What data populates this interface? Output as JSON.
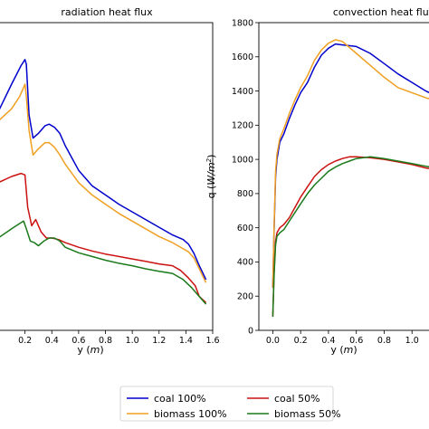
{
  "chart_data": [
    {
      "type": "line",
      "title": "radiation heat flux",
      "xlabel": "y",
      "xlabel_unit": "m",
      "ylabel": "",
      "xlim": [
        0.0,
        1.6
      ],
      "ylim": [
        0,
        1000
      ],
      "xticks": [
        "0.2",
        "0.4",
        "0.6",
        "0.8",
        "1.0",
        "1.2",
        "1.4",
        "1.6"
      ],
      "series": [
        {
          "name": "coal 100%",
          "color": "#0000cc",
          "x": [
            0.0,
            0.1,
            0.17,
            0.2,
            0.21,
            0.23,
            0.26,
            0.3,
            0.35,
            0.38,
            0.42,
            0.46,
            0.5,
            0.55,
            0.6,
            0.65,
            0.7,
            0.8,
            0.9,
            1.0,
            1.1,
            1.2,
            1.3,
            1.38,
            1.42,
            1.46,
            1.5,
            1.55
          ],
          "y": [
            710,
            800,
            860,
            880,
            865,
            700,
            625,
            640,
            665,
            670,
            660,
            640,
            600,
            560,
            520,
            495,
            470,
            440,
            410,
            385,
            360,
            335,
            310,
            295,
            280,
            250,
            210,
            165
          ]
        },
        {
          "name": "biomass 100%",
          "color": "#f0a020",
          "x": [
            0.0,
            0.1,
            0.16,
            0.18,
            0.2,
            0.21,
            0.23,
            0.26,
            0.3,
            0.35,
            0.38,
            0.42,
            0.46,
            0.5,
            0.55,
            0.6,
            0.65,
            0.7,
            0.8,
            0.9,
            1.0,
            1.1,
            1.2,
            1.3,
            1.38,
            1.42,
            1.46,
            1.5,
            1.55
          ],
          "y": [
            680,
            720,
            760,
            780,
            800,
            760,
            650,
            570,
            590,
            610,
            610,
            595,
            570,
            540,
            510,
            480,
            460,
            440,
            410,
            380,
            355,
            330,
            305,
            285,
            265,
            255,
            235,
            200,
            155
          ]
        },
        {
          "name": "coal 50%",
          "color": "#cc1111",
          "x": [
            0.0,
            0.1,
            0.17,
            0.2,
            0.22,
            0.25,
            0.28,
            0.32,
            0.36,
            0.4,
            0.45,
            0.5,
            0.6,
            0.7,
            0.8,
            0.9,
            1.0,
            1.1,
            1.2,
            1.3,
            1.36,
            1.42,
            1.47,
            1.5,
            1.55
          ],
          "y": [
            480,
            500,
            510,
            505,
            400,
            340,
            360,
            320,
            300,
            300,
            295,
            285,
            270,
            258,
            248,
            240,
            232,
            224,
            216,
            210,
            195,
            170,
            145,
            110,
            90
          ]
        },
        {
          "name": "biomass 50%",
          "color": "#1a7a1a",
          "x": [
            0.0,
            0.1,
            0.17,
            0.19,
            0.21,
            0.24,
            0.27,
            0.3,
            0.34,
            0.38,
            0.42,
            0.46,
            0.5,
            0.6,
            0.7,
            0.8,
            0.9,
            1.0,
            1.1,
            1.2,
            1.3,
            1.38,
            1.44,
            1.5,
            1.55
          ],
          "y": [
            300,
            330,
            350,
            355,
            330,
            290,
            285,
            275,
            290,
            300,
            300,
            290,
            270,
            252,
            240,
            228,
            218,
            210,
            200,
            192,
            185,
            165,
            140,
            110,
            85
          ]
        }
      ]
    },
    {
      "type": "line",
      "title": "convection heat flux",
      "xlabel": "y",
      "xlabel_unit": "m",
      "ylabel": "q",
      "ylabel_unit": "W/m",
      "ylabel_exp": "2",
      "xlim": [
        -0.1,
        1.2
      ],
      "ylim": [
        0,
        1800
      ],
      "xticks": [
        "0.0",
        "0.2",
        "0.4",
        "0.6",
        "0.8",
        "1.0"
      ],
      "yticks": [
        "0",
        "200",
        "400",
        "600",
        "800",
        "1000",
        "1200",
        "1400",
        "1600",
        "1800"
      ],
      "series": [
        {
          "name": "coal 100%",
          "color": "#0000cc",
          "x": [
            0.0,
            0.01,
            0.02,
            0.03,
            0.05,
            0.08,
            0.12,
            0.16,
            0.2,
            0.25,
            0.3,
            0.35,
            0.4,
            0.45,
            0.5,
            0.6,
            0.7,
            0.8,
            0.9,
            1.0,
            1.1,
            1.2
          ],
          "y": [
            250,
            600,
            900,
            1000,
            1100,
            1150,
            1240,
            1320,
            1390,
            1450,
            1540,
            1610,
            1650,
            1675,
            1670,
            1660,
            1620,
            1560,
            1500,
            1450,
            1400,
            1360
          ]
        },
        {
          "name": "biomass 100%",
          "color": "#f0a020",
          "x": [
            0.0,
            0.01,
            0.02,
            0.03,
            0.05,
            0.08,
            0.12,
            0.16,
            0.2,
            0.25,
            0.3,
            0.35,
            0.4,
            0.45,
            0.5,
            0.6,
            0.7,
            0.8,
            0.9,
            1.0,
            1.1,
            1.2
          ],
          "y": [
            250,
            620,
            930,
            1030,
            1120,
            1180,
            1270,
            1350,
            1420,
            1490,
            1580,
            1640,
            1680,
            1700,
            1690,
            1620,
            1550,
            1480,
            1420,
            1390,
            1360,
            1340
          ]
        },
        {
          "name": "coal 50%",
          "color": "#cc1111",
          "x": [
            0.0,
            0.01,
            0.02,
            0.03,
            0.05,
            0.08,
            0.12,
            0.16,
            0.2,
            0.25,
            0.3,
            0.35,
            0.4,
            0.45,
            0.5,
            0.55,
            0.6,
            0.7,
            0.8,
            0.9,
            1.0,
            1.1,
            1.2
          ],
          "y": [
            80,
            350,
            520,
            570,
            600,
            620,
            660,
            720,
            780,
            840,
            900,
            940,
            970,
            990,
            1005,
            1015,
            1015,
            1010,
            1000,
            985,
            970,
            950,
            935
          ]
        },
        {
          "name": "biomass 50%",
          "color": "#1a7a1a",
          "x": [
            0.0,
            0.01,
            0.02,
            0.03,
            0.05,
            0.08,
            0.12,
            0.16,
            0.2,
            0.25,
            0.3,
            0.35,
            0.4,
            0.45,
            0.5,
            0.55,
            0.6,
            0.7,
            0.8,
            0.9,
            1.0,
            1.1,
            1.2
          ],
          "y": [
            80,
            330,
            500,
            550,
            570,
            590,
            640,
            690,
            740,
            800,
            850,
            890,
            930,
            955,
            975,
            990,
            1005,
            1015,
            1005,
            990,
            975,
            960,
            945
          ]
        }
      ]
    }
  ],
  "legend": {
    "placement": "bottom-center",
    "entries": [
      {
        "label": "coal 100%",
        "color": "#0000cc"
      },
      {
        "label": "coal 50%",
        "color": "#cc1111"
      },
      {
        "label": "biomass 100%",
        "color": "#f0a020"
      },
      {
        "label": "biomass 50%",
        "color": "#1a7a1a"
      }
    ]
  }
}
